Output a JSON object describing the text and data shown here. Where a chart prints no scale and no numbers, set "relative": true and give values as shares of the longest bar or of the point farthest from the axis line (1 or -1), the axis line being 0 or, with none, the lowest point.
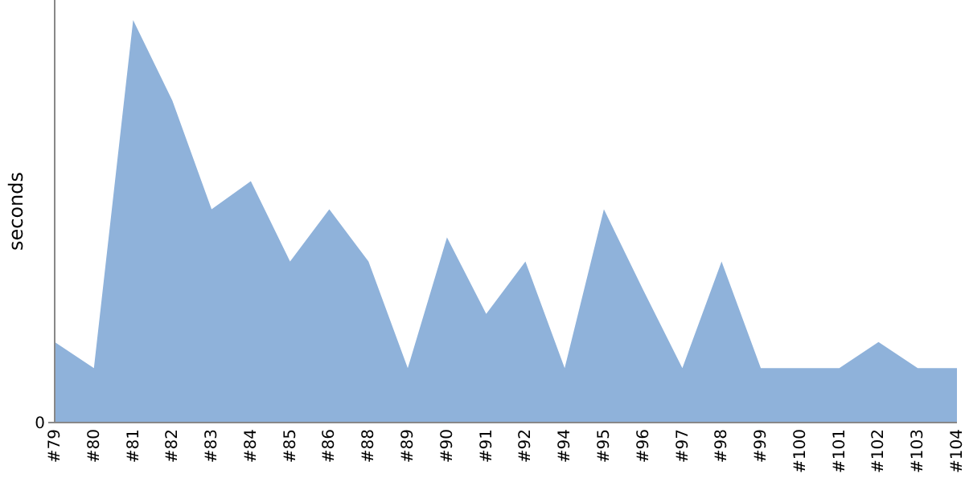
{
  "chart_data": {
    "type": "area",
    "ylabel": "seconds",
    "relative": true,
    "categories": [
      "#79",
      "#80",
      "#81",
      "#82",
      "#83",
      "#84",
      "#85",
      "#86",
      "#88",
      "#89",
      "#90",
      "#91",
      "#92",
      "#94",
      "#95",
      "#96",
      "#97",
      "#98",
      "#99",
      "#100",
      "#101",
      "#102",
      "#103",
      "#104"
    ],
    "series": [
      {
        "color": "#8fb2da",
        "values": [
          0.2,
          0.135,
          1,
          0.8,
          0.53,
          0.6,
          0.4,
          0.53,
          0.4,
          0.135,
          0.46,
          0.27,
          0.4,
          0.135,
          0.53,
          0.33,
          0.135,
          0.4,
          0.135,
          0.135,
          0.135,
          0.2,
          0.135,
          0.135
        ]
      }
    ],
    "annotations": [
      "0"
    ]
  }
}
